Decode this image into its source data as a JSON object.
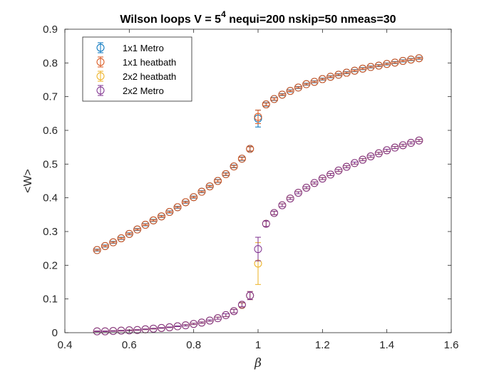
{
  "chart_data": {
    "type": "scatter",
    "title": "Wilson loops V = 5",
    "title_superscript": "4",
    "title_suffix": " nequi=200 nskip=50 nmeas=30",
    "xlabel": "β",
    "ylabel": "<W>",
    "xlim": [
      0.4,
      1.6
    ],
    "ylim": [
      0,
      0.9
    ],
    "xticks": [
      0.4,
      0.6,
      0.8,
      1,
      1.2,
      1.4,
      1.6
    ],
    "xtick_labels": [
      "0.4",
      "0.6",
      "0.8",
      "1",
      "1.2",
      "1.4",
      "1.6"
    ],
    "yticks": [
      0,
      0.1,
      0.2,
      0.3,
      0.4,
      0.5,
      0.6,
      0.7,
      0.8,
      0.9
    ],
    "ytick_labels": [
      "0",
      "0.1",
      "0.2",
      "0.3",
      "0.4",
      "0.5",
      "0.6",
      "0.7",
      "0.8",
      "0.9"
    ],
    "grid": false,
    "legend_position": "top-left",
    "marker": "open-circle-with-errorbars",
    "x": [
      0.5,
      0.525,
      0.55,
      0.575,
      0.6,
      0.625,
      0.65,
      0.675,
      0.7,
      0.725,
      0.75,
      0.775,
      0.8,
      0.825,
      0.85,
      0.875,
      0.9,
      0.925,
      0.95,
      0.975,
      1.0,
      1.025,
      1.05,
      1.075,
      1.1,
      1.125,
      1.15,
      1.175,
      1.2,
      1.225,
      1.25,
      1.275,
      1.3,
      1.325,
      1.35,
      1.375,
      1.4,
      1.425,
      1.45,
      1.475,
      1.5
    ],
    "series": [
      {
        "name": "1x1 Metro",
        "color": "#0072BD",
        "y": [
          0.245,
          0.257,
          0.268,
          0.28,
          0.293,
          0.306,
          0.32,
          0.333,
          0.345,
          0.358,
          0.372,
          0.387,
          0.402,
          0.418,
          0.434,
          0.45,
          0.47,
          0.493,
          0.516,
          0.545,
          0.635,
          0.677,
          0.693,
          0.706,
          0.717,
          0.727,
          0.737,
          0.744,
          0.752,
          0.759,
          0.765,
          0.771,
          0.777,
          0.783,
          0.788,
          0.792,
          0.797,
          0.801,
          0.806,
          0.81,
          0.814
        ],
        "err": [
          0.003,
          0.003,
          0.003,
          0.003,
          0.003,
          0.003,
          0.003,
          0.003,
          0.003,
          0.003,
          0.003,
          0.003,
          0.003,
          0.003,
          0.003,
          0.004,
          0.004,
          0.004,
          0.005,
          0.007,
          0.025,
          0.005,
          0.004,
          0.003,
          0.003,
          0.003,
          0.003,
          0.003,
          0.003,
          0.003,
          0.003,
          0.003,
          0.003,
          0.003,
          0.003,
          0.003,
          0.003,
          0.003,
          0.003,
          0.003,
          0.003
        ]
      },
      {
        "name": "1x1 heatbath",
        "color": "#D95319",
        "y": [
          0.245,
          0.257,
          0.268,
          0.28,
          0.293,
          0.306,
          0.32,
          0.333,
          0.345,
          0.358,
          0.372,
          0.387,
          0.402,
          0.418,
          0.434,
          0.45,
          0.47,
          0.493,
          0.516,
          0.545,
          0.64,
          0.677,
          0.693,
          0.706,
          0.717,
          0.727,
          0.737,
          0.744,
          0.752,
          0.759,
          0.765,
          0.771,
          0.777,
          0.783,
          0.788,
          0.792,
          0.797,
          0.801,
          0.806,
          0.81,
          0.814
        ],
        "err": [
          0.002,
          0.002,
          0.002,
          0.002,
          0.002,
          0.002,
          0.002,
          0.002,
          0.002,
          0.002,
          0.002,
          0.002,
          0.002,
          0.002,
          0.002,
          0.003,
          0.003,
          0.003,
          0.004,
          0.006,
          0.02,
          0.004,
          0.003,
          0.002,
          0.002,
          0.002,
          0.002,
          0.002,
          0.002,
          0.002,
          0.002,
          0.002,
          0.002,
          0.002,
          0.002,
          0.002,
          0.002,
          0.002,
          0.002,
          0.002,
          0.002
        ]
      },
      {
        "name": "2x2 heatbath",
        "color": "#EDB120",
        "y": [
          0.004,
          0.004,
          0.005,
          0.006,
          0.007,
          0.008,
          0.01,
          0.012,
          0.014,
          0.016,
          0.019,
          0.022,
          0.026,
          0.03,
          0.036,
          0.043,
          0.052,
          0.064,
          0.082,
          0.11,
          0.205,
          0.323,
          0.355,
          0.378,
          0.398,
          0.415,
          0.43,
          0.444,
          0.457,
          0.469,
          0.481,
          0.492,
          0.503,
          0.513,
          0.523,
          0.532,
          0.541,
          0.549,
          0.556,
          0.563,
          0.57
        ],
        "err": [
          0.001,
          0.001,
          0.001,
          0.001,
          0.001,
          0.001,
          0.001,
          0.001,
          0.001,
          0.001,
          0.001,
          0.002,
          0.002,
          0.002,
          0.002,
          0.003,
          0.004,
          0.005,
          0.006,
          0.012,
          0.062,
          0.008,
          0.005,
          0.004,
          0.003,
          0.003,
          0.003,
          0.003,
          0.003,
          0.003,
          0.003,
          0.003,
          0.003,
          0.003,
          0.003,
          0.003,
          0.003,
          0.003,
          0.003,
          0.003,
          0.003
        ]
      },
      {
        "name": "2x2 Metro",
        "color": "#7E2F8E",
        "y": [
          0.004,
          0.004,
          0.005,
          0.006,
          0.007,
          0.008,
          0.01,
          0.012,
          0.014,
          0.016,
          0.019,
          0.022,
          0.026,
          0.03,
          0.036,
          0.043,
          0.052,
          0.064,
          0.083,
          0.11,
          0.248,
          0.323,
          0.355,
          0.378,
          0.398,
          0.415,
          0.43,
          0.444,
          0.457,
          0.469,
          0.481,
          0.492,
          0.503,
          0.513,
          0.523,
          0.532,
          0.541,
          0.549,
          0.556,
          0.563,
          0.57
        ],
        "err": [
          0.001,
          0.001,
          0.001,
          0.001,
          0.001,
          0.001,
          0.001,
          0.001,
          0.001,
          0.001,
          0.001,
          0.002,
          0.002,
          0.002,
          0.002,
          0.003,
          0.004,
          0.005,
          0.006,
          0.012,
          0.035,
          0.008,
          0.005,
          0.004,
          0.003,
          0.003,
          0.003,
          0.003,
          0.003,
          0.003,
          0.003,
          0.003,
          0.003,
          0.003,
          0.003,
          0.003,
          0.003,
          0.003,
          0.003,
          0.003,
          0.003
        ]
      }
    ]
  }
}
